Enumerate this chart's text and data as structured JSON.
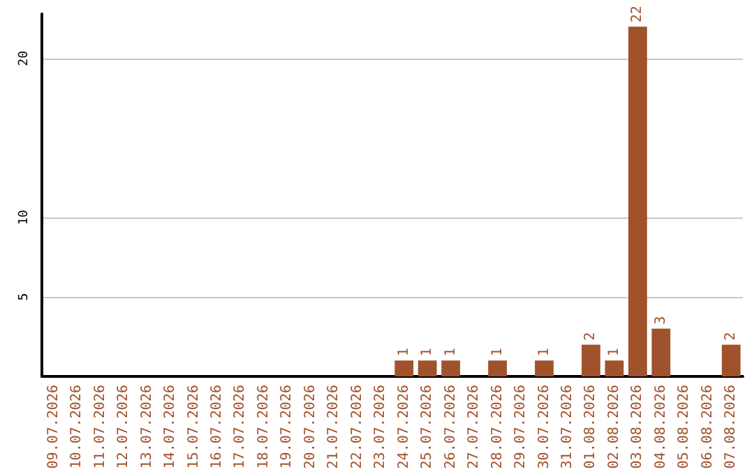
{
  "chart_data": {
    "type": "bar",
    "categories": [
      "09.07.2026",
      "10.07.2026",
      "11.07.2026",
      "12.07.2026",
      "13.07.2026",
      "14.07.2026",
      "15.07.2026",
      "16.07.2026",
      "17.07.2026",
      "18.07.2026",
      "19.07.2026",
      "20.07.2026",
      "21.07.2026",
      "22.07.2026",
      "23.07.2026",
      "24.07.2026",
      "25.07.2026",
      "26.07.2026",
      "27.07.2026",
      "28.07.2026",
      "29.07.2026",
      "30.07.2026",
      "31.07.2026",
      "01.08.2026",
      "02.08.2026",
      "03.08.2026",
      "04.08.2026",
      "05.08.2026",
      "06.08.2026",
      "07.08.2026"
    ],
    "values": [
      null,
      null,
      null,
      null,
      null,
      null,
      null,
      null,
      null,
      null,
      null,
      null,
      null,
      null,
      null,
      1,
      1,
      1,
      null,
      1,
      null,
      1,
      null,
      2,
      1,
      22,
      3,
      null,
      null,
      2
    ],
    "color": "#a0522d",
    "ylim": [
      0,
      22.8
    ],
    "yticks": [
      5,
      10,
      20
    ],
    "grid": "y",
    "data_labels": true
  }
}
